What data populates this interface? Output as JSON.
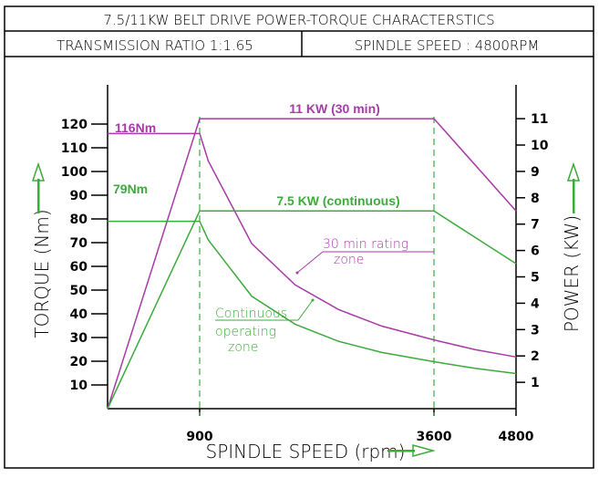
{
  "header": {
    "title": "7.5/11KW BELT DRIVE POWER-TORQUE CHARACTERSTICS",
    "left_cell": "TRANSMISSION RATIO 1:1.65",
    "right_cell": "SPINDLE SPEED : 4800RPM"
  },
  "colors": {
    "frame": "#000000",
    "s1_30min": "#a83aa8",
    "continuous": "#3caa3c",
    "axis": "#000000"
  },
  "chart_data": {
    "type": "line",
    "xlabel": "SPINDLE SPEED (rpm)",
    "ylabel_left": "TORQUE (Nm)",
    "ylabel_right": "POWER (KW)",
    "x_ticks": [
      "900",
      "3600",
      "4800"
    ],
    "y_left_range": [
      0,
      120
    ],
    "y_left_ticks": [
      10,
      20,
      30,
      40,
      50,
      60,
      70,
      80,
      90,
      100,
      110,
      120
    ],
    "y_right_range": [
      0,
      11
    ],
    "y_right_ticks": [
      1,
      2,
      3,
      4,
      5,
      6,
      7,
      8,
      9,
      10,
      11
    ],
    "series": [
      {
        "name": "30 min rating",
        "kind": "torque",
        "color": "#a83aa8",
        "points": [
          [
            900,
            116
          ],
          [
            1000,
            104.4
          ],
          [
            1500,
            69.6
          ],
          [
            2000,
            52.2
          ],
          [
            2500,
            41.8
          ],
          [
            3000,
            34.8
          ],
          [
            3600,
            29
          ],
          [
            4200,
            24.9
          ],
          [
            4800,
            21.8
          ]
        ]
      },
      {
        "name": "continuous",
        "kind": "torque",
        "color": "#3caa3c",
        "points": [
          [
            900,
            79
          ],
          [
            1000,
            71.1
          ],
          [
            1500,
            47.4
          ],
          [
            2000,
            35.6
          ],
          [
            2500,
            28.4
          ],
          [
            3000,
            23.7
          ],
          [
            3600,
            19.8
          ],
          [
            4200,
            17
          ],
          [
            4800,
            14.8
          ]
        ]
      },
      {
        "name": "11 KW (30 min)",
        "kind": "power",
        "color": "#a83aa8",
        "points": [
          [
            0,
            0
          ],
          [
            900,
            11
          ],
          [
            3600,
            11
          ],
          [
            4800,
            7.5
          ]
        ]
      },
      {
        "name": "7.5 KW (continuous)",
        "kind": "power",
        "color": "#3caa3c",
        "points": [
          [
            0,
            0
          ],
          [
            900,
            7.5
          ],
          [
            3600,
            7.5
          ],
          [
            4800,
            5.5
          ]
        ]
      }
    ],
    "annotations": {
      "torque_30min": "116Nm",
      "torque_cont": "79Nm",
      "power_30min": "11 KW (30 min)",
      "power_cont": "7.5 KW (continuous)",
      "zone_30min_line1": "30 min rating",
      "zone_30min_line2": "zone",
      "zone_cont_line1": "Continuous",
      "zone_cont_line2": "operating",
      "zone_cont_line3": "zone"
    }
  }
}
